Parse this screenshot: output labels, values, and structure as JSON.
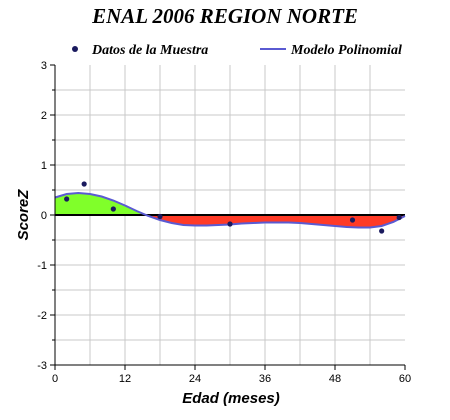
{
  "chart_data": {
    "type": "scatter",
    "title": "ENAL 2006 REGION NORTE",
    "xlabel": "Edad (meses)",
    "ylabel": "ScoreZ",
    "xlim": [
      0,
      60
    ],
    "ylim": [
      -3,
      3
    ],
    "x_ticks": [
      "0",
      "12",
      "24",
      "36",
      "48",
      "60"
    ],
    "y_ticks": [
      "3",
      "2",
      "1",
      "0",
      "-1",
      "-2",
      "-3"
    ],
    "grid": true,
    "legend": "top",
    "series": [
      {
        "name": "Datos de la Muestra",
        "kind": "points",
        "color": "#1a1a5e",
        "x": [
          2,
          5,
          10,
          18,
          30,
          51,
          56,
          59
        ],
        "y": [
          0.32,
          0.62,
          0.12,
          -0.03,
          -0.18,
          -0.1,
          -0.32,
          -0.05
        ]
      },
      {
        "name": "Modelo Polinomial",
        "kind": "line",
        "color": "#5a5ad2",
        "x": [
          0,
          2,
          4,
          6,
          8,
          10,
          12,
          14,
          16,
          18,
          20,
          22,
          24,
          26,
          28,
          30,
          32,
          34,
          36,
          38,
          40,
          42,
          44,
          46,
          48,
          50,
          52,
          54,
          56,
          58,
          60
        ],
        "y": [
          0.35,
          0.42,
          0.44,
          0.42,
          0.37,
          0.29,
          0.19,
          0.08,
          -0.02,
          -0.1,
          -0.16,
          -0.2,
          -0.21,
          -0.21,
          -0.2,
          -0.19,
          -0.17,
          -0.16,
          -0.15,
          -0.15,
          -0.15,
          -0.16,
          -0.18,
          -0.2,
          -0.22,
          -0.24,
          -0.25,
          -0.25,
          -0.22,
          -0.14,
          -0.02
        ]
      }
    ],
    "fill_colors": {
      "positive": "#80ff2a",
      "negative": "#ff3a26"
    }
  }
}
